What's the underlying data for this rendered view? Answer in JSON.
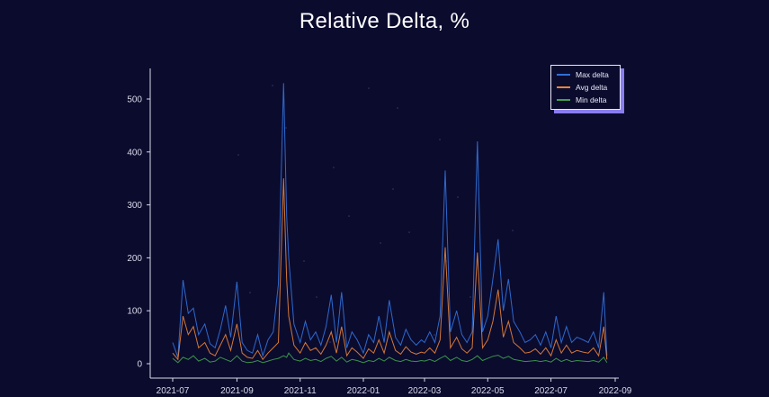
{
  "title": "Relative Delta, %",
  "chart_data": {
    "type": "line",
    "title": "Relative Delta, %",
    "xlabel": "",
    "ylabel": "",
    "x_range": [
      "2021-07-01",
      "2022-09-01"
    ],
    "ylim": [
      0,
      550
    ],
    "x_ticks": [
      "2021-07",
      "2021-09",
      "2021-11",
      "2022-01",
      "2022-03",
      "2022-05",
      "2022-07",
      "2022-09"
    ],
    "y_ticks": [
      0,
      100,
      200,
      300,
      400,
      500
    ],
    "grid": false,
    "legend_position": "top-right",
    "series": [
      {
        "name": "Max delta",
        "color": "#2f6fd6",
        "points": [
          [
            "2021-07-01",
            40
          ],
          [
            "2021-07-06",
            12
          ],
          [
            "2021-07-11",
            158
          ],
          [
            "2021-07-16",
            95
          ],
          [
            "2021-07-21",
            105
          ],
          [
            "2021-07-26",
            55
          ],
          [
            "2021-08-01",
            75
          ],
          [
            "2021-08-06",
            38
          ],
          [
            "2021-08-11",
            30
          ],
          [
            "2021-08-16",
            65
          ],
          [
            "2021-08-21",
            110
          ],
          [
            "2021-08-26",
            50
          ],
          [
            "2021-09-01",
            155
          ],
          [
            "2021-09-06",
            40
          ],
          [
            "2021-09-11",
            25
          ],
          [
            "2021-09-16",
            20
          ],
          [
            "2021-09-21",
            55
          ],
          [
            "2021-09-26",
            15
          ],
          [
            "2021-10-01",
            45
          ],
          [
            "2021-10-06",
            60
          ],
          [
            "2021-10-11",
            150
          ],
          [
            "2021-10-16",
            530
          ],
          [
            "2021-10-19",
            280
          ],
          [
            "2021-10-21",
            200
          ],
          [
            "2021-10-26",
            75
          ],
          [
            "2021-11-01",
            40
          ],
          [
            "2021-11-06",
            80
          ],
          [
            "2021-11-11",
            45
          ],
          [
            "2021-11-16",
            60
          ],
          [
            "2021-11-21",
            35
          ],
          [
            "2021-11-26",
            70
          ],
          [
            "2021-12-01",
            130
          ],
          [
            "2021-12-06",
            40
          ],
          [
            "2021-12-11",
            135
          ],
          [
            "2021-12-16",
            30
          ],
          [
            "2021-12-21",
            60
          ],
          [
            "2021-12-26",
            45
          ],
          [
            "2022-01-01",
            20
          ],
          [
            "2022-01-06",
            55
          ],
          [
            "2022-01-11",
            40
          ],
          [
            "2022-01-16",
            90
          ],
          [
            "2022-01-21",
            40
          ],
          [
            "2022-01-26",
            120
          ],
          [
            "2022-02-01",
            50
          ],
          [
            "2022-02-06",
            35
          ],
          [
            "2022-02-11",
            65
          ],
          [
            "2022-02-16",
            45
          ],
          [
            "2022-02-21",
            35
          ],
          [
            "2022-02-26",
            45
          ],
          [
            "2022-03-01",
            40
          ],
          [
            "2022-03-06",
            60
          ],
          [
            "2022-03-11",
            40
          ],
          [
            "2022-03-16",
            90
          ],
          [
            "2022-03-21",
            365
          ],
          [
            "2022-03-26",
            60
          ],
          [
            "2022-04-01",
            100
          ],
          [
            "2022-04-06",
            55
          ],
          [
            "2022-04-11",
            40
          ],
          [
            "2022-04-16",
            60
          ],
          [
            "2022-04-21",
            420
          ],
          [
            "2022-04-26",
            60
          ],
          [
            "2022-05-01",
            90
          ],
          [
            "2022-05-06",
            160
          ],
          [
            "2022-05-11",
            235
          ],
          [
            "2022-05-16",
            100
          ],
          [
            "2022-05-21",
            160
          ],
          [
            "2022-05-26",
            80
          ],
          [
            "2022-06-01",
            60
          ],
          [
            "2022-06-06",
            40
          ],
          [
            "2022-06-11",
            45
          ],
          [
            "2022-06-16",
            55
          ],
          [
            "2022-06-21",
            35
          ],
          [
            "2022-06-26",
            60
          ],
          [
            "2022-07-01",
            30
          ],
          [
            "2022-07-06",
            90
          ],
          [
            "2022-07-11",
            40
          ],
          [
            "2022-07-16",
            70
          ],
          [
            "2022-07-21",
            40
          ],
          [
            "2022-07-26",
            50
          ],
          [
            "2022-08-01",
            45
          ],
          [
            "2022-08-06",
            40
          ],
          [
            "2022-08-11",
            60
          ],
          [
            "2022-08-16",
            30
          ],
          [
            "2022-08-21",
            135
          ],
          [
            "2022-08-24",
            15
          ]
        ]
      },
      {
        "name": "Avg delta",
        "color": "#e8843a",
        "points": [
          [
            "2021-07-01",
            20
          ],
          [
            "2021-07-06",
            8
          ],
          [
            "2021-07-11",
            90
          ],
          [
            "2021-07-16",
            55
          ],
          [
            "2021-07-21",
            70
          ],
          [
            "2021-07-26",
            30
          ],
          [
            "2021-08-01",
            40
          ],
          [
            "2021-08-06",
            20
          ],
          [
            "2021-08-11",
            15
          ],
          [
            "2021-08-16",
            35
          ],
          [
            "2021-08-21",
            55
          ],
          [
            "2021-08-26",
            25
          ],
          [
            "2021-09-01",
            75
          ],
          [
            "2021-09-06",
            20
          ],
          [
            "2021-09-11",
            12
          ],
          [
            "2021-09-16",
            10
          ],
          [
            "2021-09-21",
            25
          ],
          [
            "2021-09-26",
            8
          ],
          [
            "2021-10-01",
            20
          ],
          [
            "2021-10-06",
            30
          ],
          [
            "2021-10-11",
            40
          ],
          [
            "2021-10-16",
            350
          ],
          [
            "2021-10-19",
            160
          ],
          [
            "2021-10-21",
            90
          ],
          [
            "2021-10-26",
            35
          ],
          [
            "2021-11-01",
            20
          ],
          [
            "2021-11-06",
            40
          ],
          [
            "2021-11-11",
            25
          ],
          [
            "2021-11-16",
            30
          ],
          [
            "2021-11-21",
            18
          ],
          [
            "2021-11-26",
            35
          ],
          [
            "2021-12-01",
            60
          ],
          [
            "2021-12-06",
            20
          ],
          [
            "2021-12-11",
            70
          ],
          [
            "2021-12-16",
            15
          ],
          [
            "2021-12-21",
            30
          ],
          [
            "2021-12-26",
            22
          ],
          [
            "2022-01-01",
            10
          ],
          [
            "2022-01-06",
            28
          ],
          [
            "2022-01-11",
            20
          ],
          [
            "2022-01-16",
            45
          ],
          [
            "2022-01-21",
            20
          ],
          [
            "2022-01-26",
            60
          ],
          [
            "2022-02-01",
            25
          ],
          [
            "2022-02-06",
            18
          ],
          [
            "2022-02-11",
            32
          ],
          [
            "2022-02-16",
            22
          ],
          [
            "2022-02-21",
            18
          ],
          [
            "2022-02-26",
            22
          ],
          [
            "2022-03-01",
            20
          ],
          [
            "2022-03-06",
            30
          ],
          [
            "2022-03-11",
            20
          ],
          [
            "2022-03-16",
            45
          ],
          [
            "2022-03-21",
            220
          ],
          [
            "2022-03-26",
            30
          ],
          [
            "2022-04-01",
            50
          ],
          [
            "2022-04-06",
            28
          ],
          [
            "2022-04-11",
            20
          ],
          [
            "2022-04-16",
            30
          ],
          [
            "2022-04-21",
            210
          ],
          [
            "2022-04-26",
            30
          ],
          [
            "2022-05-01",
            45
          ],
          [
            "2022-05-06",
            80
          ],
          [
            "2022-05-11",
            140
          ],
          [
            "2022-05-16",
            50
          ],
          [
            "2022-05-21",
            80
          ],
          [
            "2022-05-26",
            40
          ],
          [
            "2022-06-01",
            30
          ],
          [
            "2022-06-06",
            20
          ],
          [
            "2022-06-11",
            22
          ],
          [
            "2022-06-16",
            28
          ],
          [
            "2022-06-21",
            18
          ],
          [
            "2022-06-26",
            30
          ],
          [
            "2022-07-01",
            15
          ],
          [
            "2022-07-06",
            45
          ],
          [
            "2022-07-11",
            20
          ],
          [
            "2022-07-16",
            35
          ],
          [
            "2022-07-21",
            20
          ],
          [
            "2022-07-26",
            25
          ],
          [
            "2022-08-01",
            22
          ],
          [
            "2022-08-06",
            20
          ],
          [
            "2022-08-11",
            30
          ],
          [
            "2022-08-16",
            15
          ],
          [
            "2022-08-21",
            70
          ],
          [
            "2022-08-24",
            8
          ]
        ]
      },
      {
        "name": "Min delta",
        "color": "#3fa34d",
        "points": [
          [
            "2021-07-01",
            10
          ],
          [
            "2021-07-06",
            2
          ],
          [
            "2021-07-11",
            12
          ],
          [
            "2021-07-16",
            8
          ],
          [
            "2021-07-21",
            15
          ],
          [
            "2021-07-26",
            5
          ],
          [
            "2021-08-01",
            10
          ],
          [
            "2021-08-06",
            3
          ],
          [
            "2021-08-11",
            5
          ],
          [
            "2021-08-16",
            12
          ],
          [
            "2021-08-21",
            8
          ],
          [
            "2021-08-26",
            4
          ],
          [
            "2021-09-01",
            15
          ],
          [
            "2021-09-06",
            5
          ],
          [
            "2021-09-11",
            2
          ],
          [
            "2021-09-16",
            3
          ],
          [
            "2021-09-21",
            6
          ],
          [
            "2021-09-26",
            2
          ],
          [
            "2021-10-01",
            5
          ],
          [
            "2021-10-06",
            8
          ],
          [
            "2021-10-11",
            10
          ],
          [
            "2021-10-16",
            15
          ],
          [
            "2021-10-19",
            12
          ],
          [
            "2021-10-21",
            20
          ],
          [
            "2021-10-26",
            8
          ],
          [
            "2021-11-01",
            5
          ],
          [
            "2021-11-06",
            10
          ],
          [
            "2021-11-11",
            6
          ],
          [
            "2021-11-16",
            8
          ],
          [
            "2021-11-21",
            4
          ],
          [
            "2021-11-26",
            10
          ],
          [
            "2021-12-01",
            14
          ],
          [
            "2021-12-06",
            5
          ],
          [
            "2021-12-11",
            12
          ],
          [
            "2021-12-16",
            3
          ],
          [
            "2021-12-21",
            8
          ],
          [
            "2021-12-26",
            6
          ],
          [
            "2022-01-01",
            2
          ],
          [
            "2022-01-06",
            6
          ],
          [
            "2022-01-11",
            4
          ],
          [
            "2022-01-16",
            10
          ],
          [
            "2022-01-21",
            5
          ],
          [
            "2022-01-26",
            12
          ],
          [
            "2022-02-01",
            6
          ],
          [
            "2022-02-06",
            4
          ],
          [
            "2022-02-11",
            8
          ],
          [
            "2022-02-16",
            5
          ],
          [
            "2022-02-21",
            4
          ],
          [
            "2022-02-26",
            6
          ],
          [
            "2022-03-01",
            5
          ],
          [
            "2022-03-06",
            8
          ],
          [
            "2022-03-11",
            4
          ],
          [
            "2022-03-16",
            10
          ],
          [
            "2022-03-21",
            15
          ],
          [
            "2022-03-26",
            6
          ],
          [
            "2022-04-01",
            12
          ],
          [
            "2022-04-06",
            6
          ],
          [
            "2022-04-11",
            4
          ],
          [
            "2022-04-16",
            8
          ],
          [
            "2022-04-21",
            15
          ],
          [
            "2022-04-26",
            6
          ],
          [
            "2022-05-01",
            10
          ],
          [
            "2022-05-06",
            14
          ],
          [
            "2022-05-11",
            16
          ],
          [
            "2022-05-16",
            10
          ],
          [
            "2022-05-21",
            14
          ],
          [
            "2022-05-26",
            8
          ],
          [
            "2022-06-01",
            6
          ],
          [
            "2022-06-06",
            4
          ],
          [
            "2022-06-11",
            5
          ],
          [
            "2022-06-16",
            6
          ],
          [
            "2022-06-21",
            4
          ],
          [
            "2022-06-26",
            6
          ],
          [
            "2022-07-01",
            3
          ],
          [
            "2022-07-06",
            10
          ],
          [
            "2022-07-11",
            4
          ],
          [
            "2022-07-16",
            8
          ],
          [
            "2022-07-21",
            4
          ],
          [
            "2022-07-26",
            6
          ],
          [
            "2022-08-01",
            5
          ],
          [
            "2022-08-06",
            4
          ],
          [
            "2022-08-11",
            6
          ],
          [
            "2022-08-16",
            3
          ],
          [
            "2022-08-21",
            12
          ],
          [
            "2022-08-24",
            2
          ]
        ]
      }
    ]
  }
}
